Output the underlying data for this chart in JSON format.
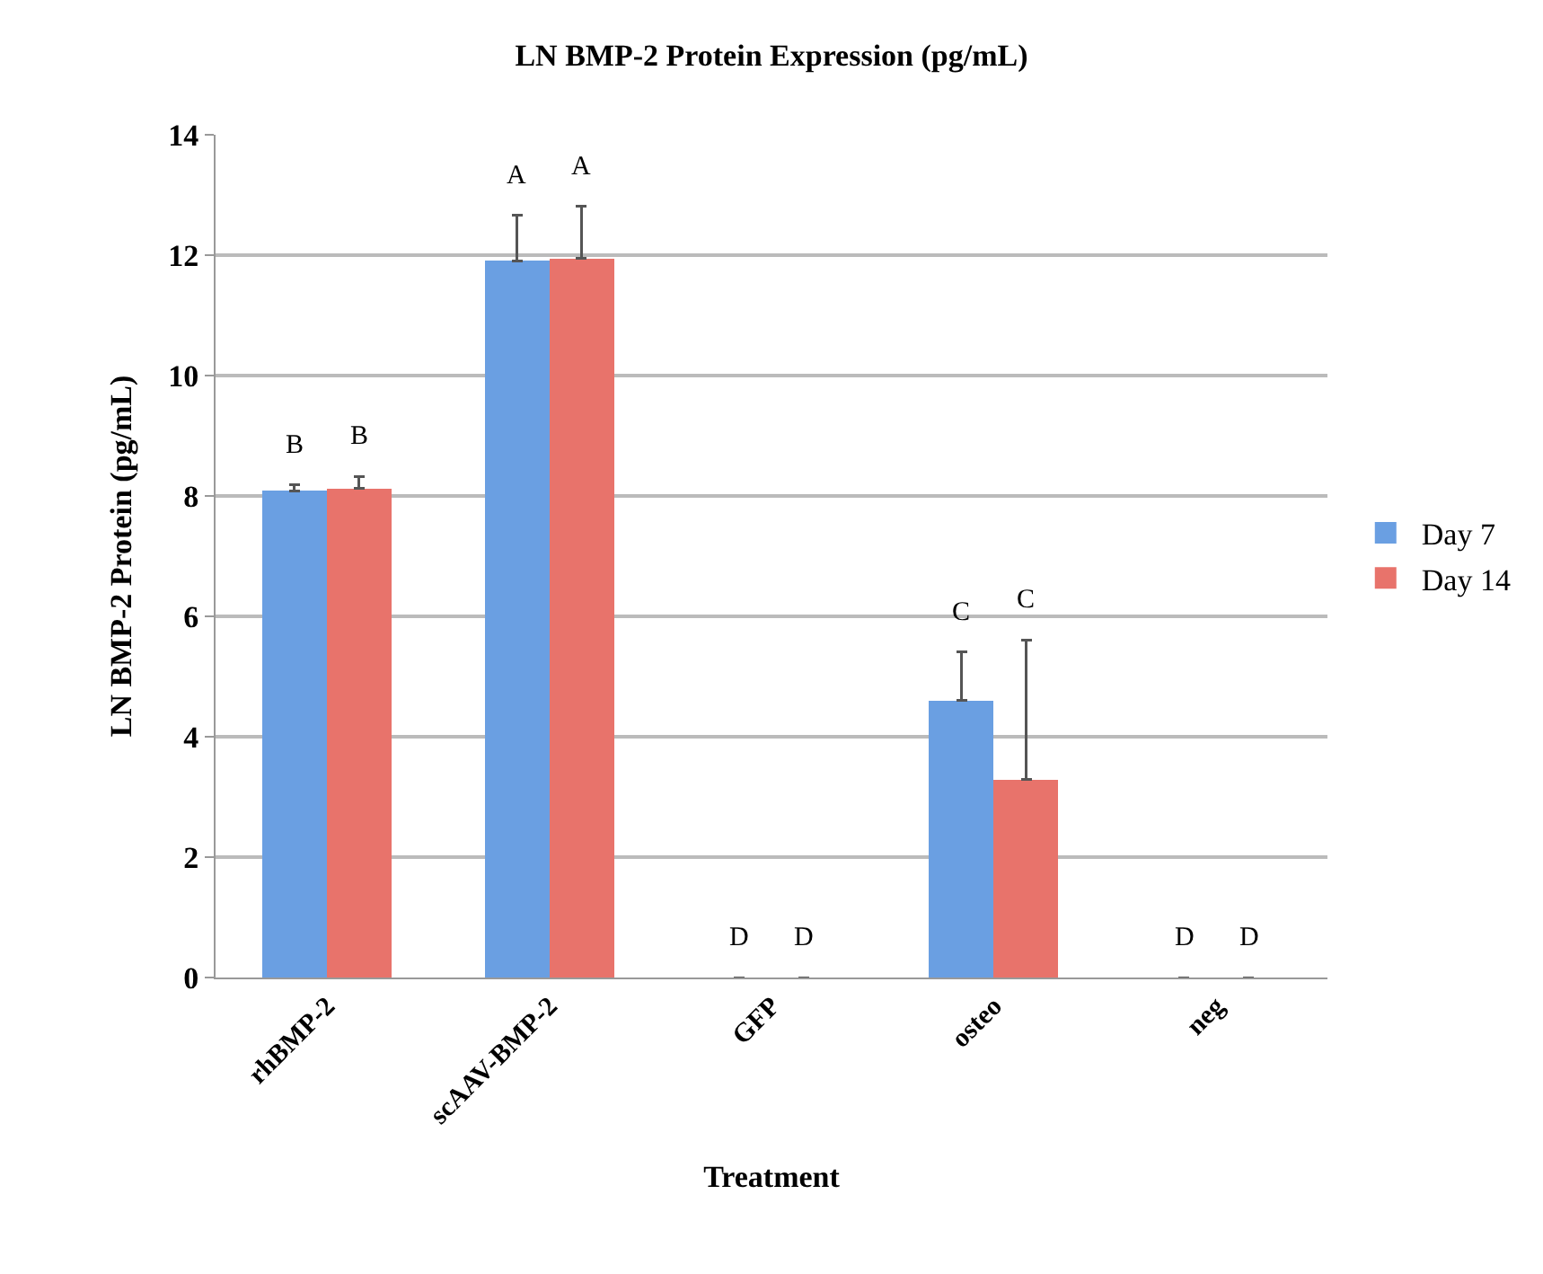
{
  "chart_data": {
    "type": "bar",
    "title": "LN BMP-2 Protein Expression (pg/mL)",
    "xlabel": "Treatment",
    "ylabel": "LN BMP-2 Protein (pg/mL)",
    "categories": [
      "rhBMP-2",
      "scAAV-BMP-2",
      "GFP",
      "osteo",
      "neg"
    ],
    "series": [
      {
        "name": "Day 7",
        "color": "#6a9fe2",
        "values": [
          8.08,
          11.9,
          0,
          4.6,
          0
        ],
        "errors": [
          0.1,
          0.76,
          null,
          0.81,
          null
        ]
      },
      {
        "name": "Day 14",
        "color": "#e8736b",
        "values": [
          8.12,
          11.95,
          0,
          3.29,
          0
        ],
        "errors": [
          0.2,
          0.87,
          null,
          2.32,
          null
        ]
      }
    ],
    "annotations": [
      "B",
      "B",
      "A",
      "A",
      "D",
      "D",
      "C",
      "C",
      "D",
      "D"
    ],
    "ylim": [
      0,
      14
    ],
    "yticks": [
      0,
      2,
      4,
      6,
      8,
      10,
      12,
      14
    ],
    "grid": "y",
    "legend": "right"
  }
}
